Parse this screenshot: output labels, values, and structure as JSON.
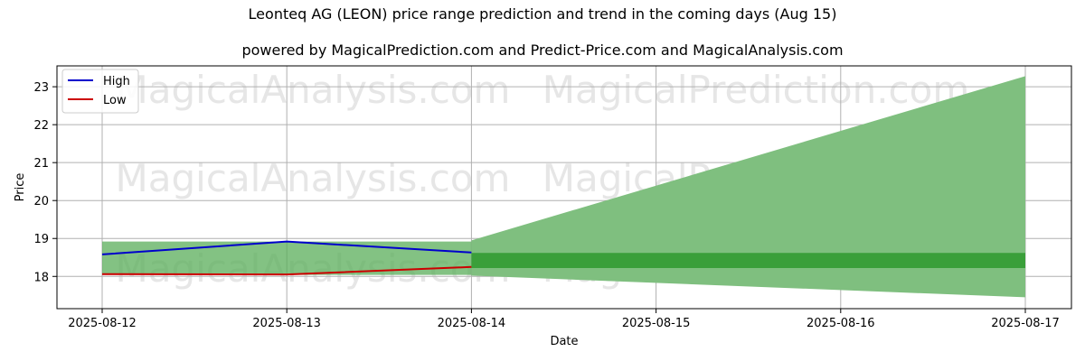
{
  "chart_data": {
    "type": "line",
    "title": "Leonteq AG (LEON) price range prediction and trend in the coming days (Aug 15)",
    "subtitle": "powered by MagicalPrediction.com and Predict-Price.com and MagicalAnalysis.com",
    "xlabel": "Date",
    "ylabel": "Price",
    "x_ticks": [
      "2025-08-12",
      "2025-08-13",
      "2025-08-14",
      "2025-08-15",
      "2025-08-16",
      "2025-08-17"
    ],
    "y_ticks": [
      18,
      19,
      20,
      21,
      22,
      23
    ],
    "ylim": [
      17.15,
      23.55
    ],
    "grid": true,
    "legend_position": "top-left",
    "series": [
      {
        "name": "High",
        "color": "#0000cc",
        "x": [
          "2025-08-12",
          "2025-08-13",
          "2025-08-14"
        ],
        "values": [
          18.58,
          18.92,
          18.63
        ]
      },
      {
        "name": "Low",
        "color": "#cc0000",
        "x": [
          "2025-08-12",
          "2025-08-13",
          "2025-08-14"
        ],
        "values": [
          18.06,
          18.05,
          18.25
        ]
      }
    ],
    "historical_band": {
      "color": "#5aad5a",
      "x": [
        "2025-08-12",
        "2025-08-13",
        "2025-08-14"
      ],
      "upper": [
        18.92,
        18.92,
        18.92
      ],
      "lower": [
        18.04,
        18.04,
        18.04
      ]
    },
    "prediction_band": {
      "color": "#7fbf7f",
      "x": [
        "2025-08-14",
        "2025-08-17"
      ],
      "upper": [
        18.95,
        23.28
      ],
      "lower": [
        18.02,
        17.45
      ]
    },
    "prediction_core_band": {
      "color": "#3a9f3a",
      "x": [
        "2025-08-14",
        "2025-08-17"
      ],
      "upper": [
        18.62,
        18.62
      ],
      "lower": [
        18.22,
        18.22
      ]
    },
    "watermarks": [
      "MagicalAnalysis.com",
      "MagicalPrediction.com"
    ]
  }
}
